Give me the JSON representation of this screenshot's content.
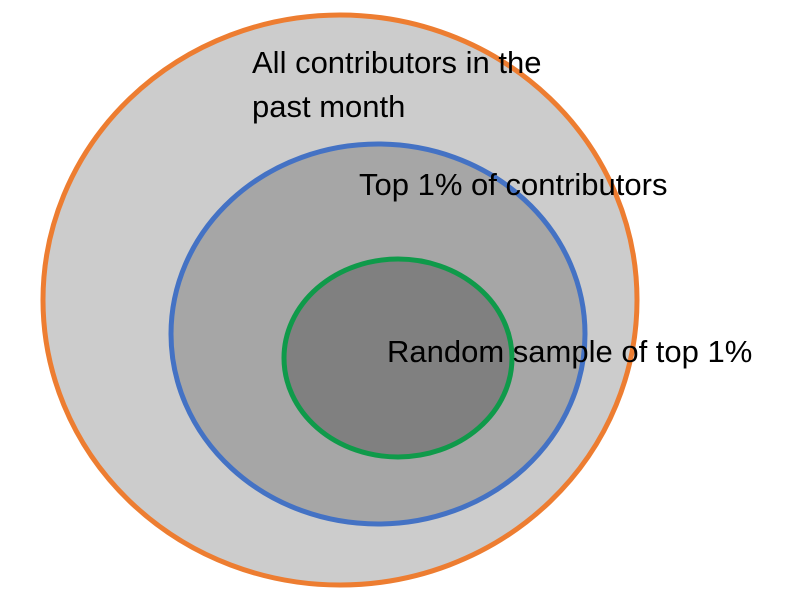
{
  "diagram": {
    "type": "nested-venn",
    "sets": [
      {
        "id": "outer",
        "label_lines": [
          "All contributors in the",
          "past month"
        ],
        "fill": "#cccccc",
        "stroke": "#ed7d31"
      },
      {
        "id": "middle",
        "label_lines": [
          "Top 1% of contributors"
        ],
        "fill": "#a6a6a6",
        "stroke": "#4472c4"
      },
      {
        "id": "inner",
        "label_lines": [
          "Random sample of top 1%"
        ],
        "fill": "#808080",
        "stroke": "#0f9a4a"
      }
    ]
  }
}
